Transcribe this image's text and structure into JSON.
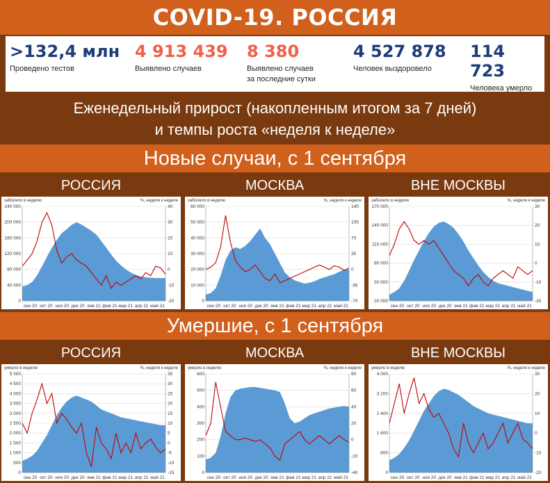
{
  "title": "COVID-19. РОССИЯ",
  "stats": [
    {
      "value": ">132,4 млн",
      "label": "Проведено тестов",
      "label2": "",
      "color": "#1c3d7a"
    },
    {
      "value": "4 913 439",
      "label": "Выявлено случаев",
      "label2": "",
      "color": "#f0604a"
    },
    {
      "value": "8 380",
      "label": "Выявлено случаев",
      "label2": "за последние сутки",
      "color": "#f0604a"
    },
    {
      "value": "4 527 878",
      "label": "Человек выздоровело",
      "label2": "",
      "color": "#1c3d7a"
    },
    {
      "value": "114 723",
      "label": "Человека умерло",
      "label2": "",
      "color": "#1c3d7a"
    }
  ],
  "subtitle_line1": "Еженедельный прирост (накопленным итогом за 7 дней)",
  "subtitle_line2": "и темпы роста «неделя к неделе»",
  "section_cases": "Новые случаи, с 1 сентября",
  "section_deaths": "Умершие, с 1 сентября",
  "colors": {
    "area": "#5b9bd5",
    "line": "#c00000"
  },
  "chart_data": [
    {
      "type": "area",
      "name": "РОССИЯ",
      "ylabel_left": "заболело в неделю",
      "ylabel_right": "%, неделя к неделе",
      "x_labels": [
        "сен 20",
        "окт 20",
        "ноя 20",
        "дек 20",
        "янв 21",
        "фев 21",
        "мар 21",
        "апр 21",
        "май 21"
      ],
      "ylim_left": [
        0,
        240000
      ],
      "y_ticks_left": [
        "0",
        "40 000",
        "80 000",
        "120 000",
        "160 000",
        "200 000",
        "240 000"
      ],
      "ylim_right": [
        -20,
        40
      ],
      "y_ticks_right": [
        "-20",
        "-10",
        "0",
        "10",
        "20",
        "30",
        "40"
      ],
      "area_values": [
        36000,
        40000,
        48000,
        65000,
        88000,
        112000,
        135000,
        155000,
        172000,
        182000,
        193000,
        200000,
        194000,
        186000,
        178000,
        168000,
        152000,
        135000,
        118000,
        102000,
        90000,
        80000,
        72000,
        66000,
        62000,
        60000,
        59000,
        58000,
        58000,
        58000
      ],
      "line_values": [
        2,
        6,
        10,
        18,
        30,
        36,
        28,
        12,
        4,
        8,
        10,
        6,
        4,
        2,
        -2,
        -6,
        -10,
        -4,
        -12,
        -8,
        -10,
        -8,
        -6,
        -4,
        -6,
        -2,
        -4,
        2,
        1,
        -3
      ]
    },
    {
      "type": "area",
      "name": "МОСКВА",
      "ylabel_left": "заболело в неделю",
      "ylabel_right": "%, неделя к неделе",
      "x_labels": [
        "сен 20",
        "окт 20",
        "ноя 20",
        "дек 20",
        "янв 21",
        "фев 21",
        "мар 21",
        "апр 21",
        "май 21"
      ],
      "ylim_left": [
        0,
        60000
      ],
      "y_ticks_left": [
        "0",
        "10 000",
        "20 000",
        "30 000",
        "40 000",
        "50 000",
        "60 000"
      ],
      "ylim_right": [
        -70,
        140
      ],
      "y_ticks_right": [
        "-70",
        "-35",
        "0",
        "35",
        "70",
        "105",
        "140"
      ],
      "area_values": [
        4000,
        5000,
        8000,
        16000,
        26000,
        32000,
        34000,
        33000,
        35000,
        38000,
        42000,
        46000,
        40000,
        36000,
        30000,
        24000,
        18000,
        15000,
        13000,
        12000,
        11000,
        11500,
        12500,
        14000,
        15000,
        16000,
        17000,
        18500,
        20000,
        20000
      ],
      "line_values": [
        0,
        5,
        15,
        50,
        120,
        60,
        20,
        5,
        -5,
        0,
        10,
        -5,
        -20,
        -25,
        -10,
        -30,
        -25,
        -20,
        -15,
        -10,
        -5,
        0,
        5,
        10,
        5,
        0,
        8,
        5,
        -2,
        3
      ]
    },
    {
      "type": "area",
      "name": "ВНЕ МОСКВЫ",
      "ylabel_left": "заболело в неделю",
      "ylabel_right": "%, неделя к неделе",
      "x_labels": [
        "сен 20",
        "окт 20",
        "ноя 20",
        "дек 20",
        "янв 21",
        "фев 21",
        "мар 21",
        "апр 21",
        "май 21"
      ],
      "ylim_left": [
        20000,
        170000
      ],
      "y_ticks_left": [
        "20 000",
        "50 000",
        "80 000",
        "110 000",
        "140 000",
        "170 000"
      ],
      "ylim_right": [
        -20,
        30
      ],
      "y_ticks_right": [
        "-20",
        "-10",
        "0",
        "10",
        "20",
        "30"
      ],
      "area_values": [
        30000,
        34000,
        40000,
        52000,
        68000,
        85000,
        100000,
        115000,
        128000,
        138000,
        144000,
        146000,
        142000,
        136000,
        126000,
        114000,
        100000,
        88000,
        76000,
        66000,
        58000,
        52000,
        48000,
        46000,
        44000,
        42000,
        40000,
        38000,
        36000,
        34000
      ],
      "line_values": [
        4,
        10,
        18,
        22,
        18,
        12,
        10,
        12,
        10,
        12,
        8,
        4,
        0,
        -4,
        -6,
        -8,
        -12,
        -8,
        -6,
        -10,
        -12,
        -8,
        -6,
        -4,
        -6,
        -8,
        -2,
        -4,
        -6,
        -4
      ]
    },
    {
      "type": "area",
      "name": "РОССИЯ",
      "ylabel_left": "умерло в неделю",
      "ylabel_right": "%, неделя к неделе",
      "x_labels": [
        "сен 20",
        "окт 20",
        "ноя 20",
        "дек 20",
        "янв 21",
        "фев 21",
        "мар 21",
        "апр 21",
        "май 21"
      ],
      "ylim_left": [
        0,
        5000
      ],
      "y_ticks_left": [
        "0",
        "500",
        "1 000",
        "1 500",
        "2 000",
        "2 500",
        "3 000",
        "3 500",
        "4 000",
        "4 500",
        "5 000"
      ],
      "ylim_right": [
        -15,
        35
      ],
      "y_ticks_right": [
        "-15",
        "-10",
        "-5",
        "0",
        "5",
        "10",
        "15",
        "20",
        "25",
        "30",
        "35"
      ],
      "area_values": [
        600,
        700,
        850,
        1100,
        1500,
        1900,
        2400,
        2900,
        3300,
        3600,
        3800,
        3900,
        3800,
        3700,
        3600,
        3400,
        3200,
        3100,
        3000,
        2900,
        2800,
        2750,
        2700,
        2650,
        2600,
        2550,
        2500,
        2450,
        2400,
        2400
      ],
      "line_values": [
        10,
        5,
        15,
        22,
        30,
        20,
        25,
        10,
        15,
        12,
        8,
        5,
        10,
        -5,
        -12,
        8,
        0,
        -3,
        -8,
        5,
        -5,
        0,
        -5,
        5,
        -3,
        0,
        2,
        -2,
        -5,
        -3
      ]
    },
    {
      "type": "area",
      "name": "МОСКВА",
      "ylabel_left": "умерло в неделю",
      "ylabel_right": "%, неделя к неделе",
      "x_labels": [
        "сен 20",
        "окт 20",
        "ноя 20",
        "дек 20",
        "янв 21",
        "фев 21",
        "мар 21",
        "апр 21",
        "май 21"
      ],
      "ylim_left": [
        0,
        600
      ],
      "y_ticks_left": [
        "0",
        "100",
        "200",
        "300",
        "400",
        "500",
        "600"
      ],
      "ylim_right": [
        -40,
        80
      ],
      "y_ticks_right": [
        "-40",
        "-20",
        "0",
        "20",
        "40",
        "60",
        "80"
      ],
      "area_values": [
        80,
        90,
        120,
        220,
        360,
        460,
        500,
        510,
        515,
        520,
        520,
        515,
        510,
        505,
        500,
        490,
        420,
        330,
        300,
        310,
        330,
        350,
        360,
        370,
        380,
        390,
        395,
        400,
        405,
        400
      ],
      "line_values": [
        5,
        20,
        70,
        40,
        10,
        5,
        0,
        0,
        2,
        0,
        -2,
        0,
        -5,
        -10,
        -20,
        -25,
        -5,
        0,
        5,
        10,
        0,
        -5,
        0,
        5,
        0,
        -5,
        0,
        5,
        0,
        -3
      ]
    },
    {
      "type": "area",
      "name": "ВНЕ МОСКВЫ",
      "ylabel_left": "умерло в неделю",
      "ylabel_right": "%, неделя к неделе",
      "x_labels": [
        "сен 20",
        "окт 20",
        "ноя 20",
        "дек 20",
        "янв 21",
        "фев 21",
        "мар 21",
        "апр 21",
        "май 21"
      ],
      "ylim_left": [
        0,
        4000
      ],
      "y_ticks_left": [
        "0",
        "800",
        "1 600",
        "2 400",
        "3 200",
        "4 000"
      ],
      "ylim_right": [
        -20,
        30
      ],
      "y_ticks_right": [
        "-20",
        "-10",
        "0",
        "10",
        "20",
        "30"
      ],
      "area_values": [
        500,
        600,
        750,
        1000,
        1300,
        1700,
        2100,
        2500,
        2800,
        3100,
        3300,
        3400,
        3350,
        3250,
        3150,
        3000,
        2850,
        2700,
        2600,
        2500,
        2400,
        2350,
        2300,
        2250,
        2200,
        2150,
        2100,
        2050,
        2000,
        2000
      ],
      "line_values": [
        5,
        15,
        25,
        10,
        20,
        28,
        15,
        20,
        12,
        8,
        10,
        5,
        0,
        -8,
        -12,
        5,
        -5,
        -10,
        -5,
        0,
        -8,
        -5,
        0,
        5,
        -5,
        0,
        5,
        -3,
        -5,
        -8
      ]
    }
  ]
}
